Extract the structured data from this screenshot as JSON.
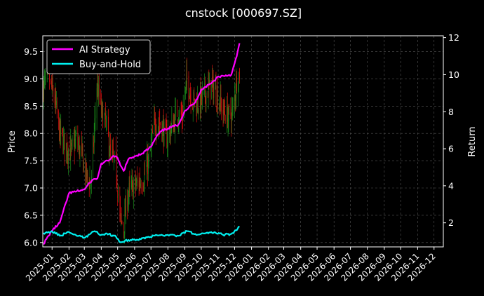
{
  "chart_data": {
    "type": "line",
    "title": "cnstock [000697.SZ]",
    "left_axis": {
      "label": "Price",
      "range": [
        5.92,
        9.79
      ],
      "ticks": [
        6.0,
        6.5,
        7.0,
        7.5,
        8.0,
        8.5,
        9.0,
        9.5
      ],
      "tick_labels": [
        "6.0",
        "6.5",
        "7.0",
        "7.5",
        "8.0",
        "8.5",
        "9.0",
        "9.5"
      ]
    },
    "right_axis": {
      "label": "Return",
      "range": [
        0.7,
        12.1
      ],
      "ticks": [
        2,
        4,
        6,
        8,
        10,
        12
      ],
      "tick_labels": [
        "2",
        "4",
        "6",
        "8",
        "10",
        "12"
      ]
    },
    "x_axis": {
      "range": [
        "2024-12-15",
        "2026-12-18"
      ],
      "ticks": [
        "2025-01-01",
        "2025-02-01",
        "2025-03-01",
        "2025-04-01",
        "2025-05-01",
        "2025-06-01",
        "2025-07-01",
        "2025-08-01",
        "2025-09-01",
        "2025-10-01",
        "2025-11-01",
        "2025-12-01",
        "2026-01-01",
        "2026-02-01",
        "2026-03-01",
        "2026-04-01",
        "2026-05-01",
        "2026-06-01",
        "2026-07-01",
        "2026-08-01",
        "2026-09-01",
        "2026-10-01",
        "2026-11-01",
        "2026-12-01"
      ],
      "tick_labels": [
        "2025-01",
        "2025-02",
        "2025-03",
        "2025-04",
        "2025-05",
        "2025-06",
        "2025-07",
        "2025-08",
        "2025-09",
        "2025-10",
        "2025-11",
        "2025-12",
        "2026-01",
        "2026-02",
        "2026-03",
        "2026-04",
        "2026-05",
        "2026-06",
        "2026-07",
        "2026-08",
        "2026-09",
        "2026-10",
        "2026-11",
        "2026-12"
      ]
    },
    "grid": true,
    "legend": {
      "placement": "top-left"
    },
    "candlestick": {
      "axis": "left",
      "up_color": "#1a8a1a",
      "down_color": "#e01010",
      "anchors": [
        [
          "2024-12-16",
          8.85
        ],
        [
          "2024-12-25",
          9.05
        ],
        [
          "2025-01-06",
          8.6
        ],
        [
          "2025-01-15",
          8.0
        ],
        [
          "2025-01-24",
          7.8
        ],
        [
          "2025-02-05",
          7.65
        ],
        [
          "2025-02-14",
          7.9
        ],
        [
          "2025-02-24",
          7.6
        ],
        [
          "2025-03-05",
          7.2
        ],
        [
          "2025-03-14",
          7.1
        ],
        [
          "2025-03-24",
          8.9
        ],
        [
          "2025-04-01",
          8.4
        ],
        [
          "2025-04-09",
          8.2
        ],
        [
          "2025-04-18",
          7.6
        ],
        [
          "2025-04-28",
          7.4
        ],
        [
          "2025-05-06",
          6.4
        ],
        [
          "2025-05-12",
          6.3
        ],
        [
          "2025-05-20",
          6.9
        ],
        [
          "2025-05-29",
          7.0
        ],
        [
          "2025-06-09",
          7.1
        ],
        [
          "2025-06-18",
          7.2
        ],
        [
          "2025-06-27",
          7.5
        ],
        [
          "2025-07-08",
          8.2
        ],
        [
          "2025-07-18",
          8.2
        ],
        [
          "2025-07-29",
          7.9
        ],
        [
          "2025-08-08",
          8.1
        ],
        [
          "2025-08-18",
          8.4
        ],
        [
          "2025-08-27",
          8.3
        ],
        [
          "2025-09-05",
          9.0
        ],
        [
          "2025-09-15",
          8.6
        ],
        [
          "2025-09-25",
          8.55
        ],
        [
          "2025-10-10",
          8.75
        ],
        [
          "2025-10-20",
          8.9
        ],
        [
          "2025-10-30",
          8.7
        ],
        [
          "2025-11-10",
          8.4
        ],
        [
          "2025-11-20",
          8.3
        ],
        [
          "2025-11-28",
          8.4
        ],
        [
          "2025-12-05",
          9.0
        ],
        [
          "2025-12-10",
          9.1
        ]
      ]
    },
    "series": [
      {
        "name": "AI Strategy",
        "axis": "right",
        "color": "#ff00ff",
        "points": [
          [
            "2024-12-16",
            0.85
          ],
          [
            "2024-12-31",
            1.55
          ],
          [
            "2025-01-15",
            2.0
          ],
          [
            "2025-02-01",
            3.6
          ],
          [
            "2025-02-15",
            3.7
          ],
          [
            "2025-03-01",
            3.8
          ],
          [
            "2025-03-15",
            4.3
          ],
          [
            "2025-03-25",
            4.4
          ],
          [
            "2025-04-01",
            5.2
          ],
          [
            "2025-04-14",
            5.35
          ],
          [
            "2025-04-22",
            5.6
          ],
          [
            "2025-05-01",
            5.5
          ],
          [
            "2025-05-06",
            5.1
          ],
          [
            "2025-05-12",
            4.8
          ],
          [
            "2025-05-20",
            5.4
          ],
          [
            "2025-06-01",
            5.6
          ],
          [
            "2025-06-15",
            5.75
          ],
          [
            "2025-07-01",
            6.1
          ],
          [
            "2025-07-10",
            6.6
          ],
          [
            "2025-07-20",
            6.95
          ],
          [
            "2025-08-01",
            7.1
          ],
          [
            "2025-08-20",
            7.3
          ],
          [
            "2025-09-01",
            8.05
          ],
          [
            "2025-09-20",
            8.5
          ],
          [
            "2025-10-01",
            9.2
          ],
          [
            "2025-10-20",
            9.55
          ],
          [
            "2025-11-01",
            9.9
          ],
          [
            "2025-11-25",
            10.0
          ],
          [
            "2025-12-01",
            10.6
          ],
          [
            "2025-12-05",
            11.0
          ],
          [
            "2025-12-10",
            11.7
          ]
        ]
      },
      {
        "name": "Buy-and-Hold",
        "axis": "right",
        "color": "#00f0f0",
        "points": [
          [
            "2024-12-16",
            1.45
          ],
          [
            "2024-12-31",
            1.55
          ],
          [
            "2025-01-15",
            1.3
          ],
          [
            "2025-02-01",
            1.5
          ],
          [
            "2025-02-15",
            1.3
          ],
          [
            "2025-03-01",
            1.2
          ],
          [
            "2025-03-20",
            1.55
          ],
          [
            "2025-04-01",
            1.35
          ],
          [
            "2025-04-15",
            1.4
          ],
          [
            "2025-04-28",
            1.25
          ],
          [
            "2025-05-06",
            0.95
          ],
          [
            "2025-05-15",
            1.05
          ],
          [
            "2025-06-01",
            1.1
          ],
          [
            "2025-06-20",
            1.15
          ],
          [
            "2025-07-10",
            1.35
          ],
          [
            "2025-08-01",
            1.35
          ],
          [
            "2025-08-20",
            1.3
          ],
          [
            "2025-09-05",
            1.55
          ],
          [
            "2025-09-20",
            1.4
          ],
          [
            "2025-10-10",
            1.45
          ],
          [
            "2025-10-25",
            1.5
          ],
          [
            "2025-11-10",
            1.35
          ],
          [
            "2025-11-25",
            1.4
          ],
          [
            "2025-12-05",
            1.6
          ],
          [
            "2025-12-10",
            1.8
          ]
        ]
      }
    ]
  }
}
